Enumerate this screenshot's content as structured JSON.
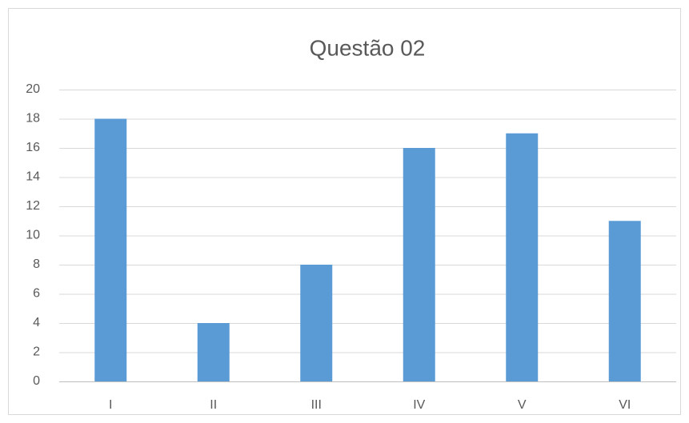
{
  "chart_data": {
    "type": "bar",
    "title": "Questão 02",
    "categories": [
      "I",
      "II",
      "III",
      "IV",
      "V",
      "VI"
    ],
    "values": [
      18,
      4,
      8,
      16,
      17,
      11
    ],
    "color": "#5b9bd5",
    "ylim": [
      0,
      20
    ],
    "yticks": [
      0,
      2,
      4,
      6,
      8,
      10,
      12,
      14,
      16,
      18,
      20
    ],
    "grid": true
  }
}
